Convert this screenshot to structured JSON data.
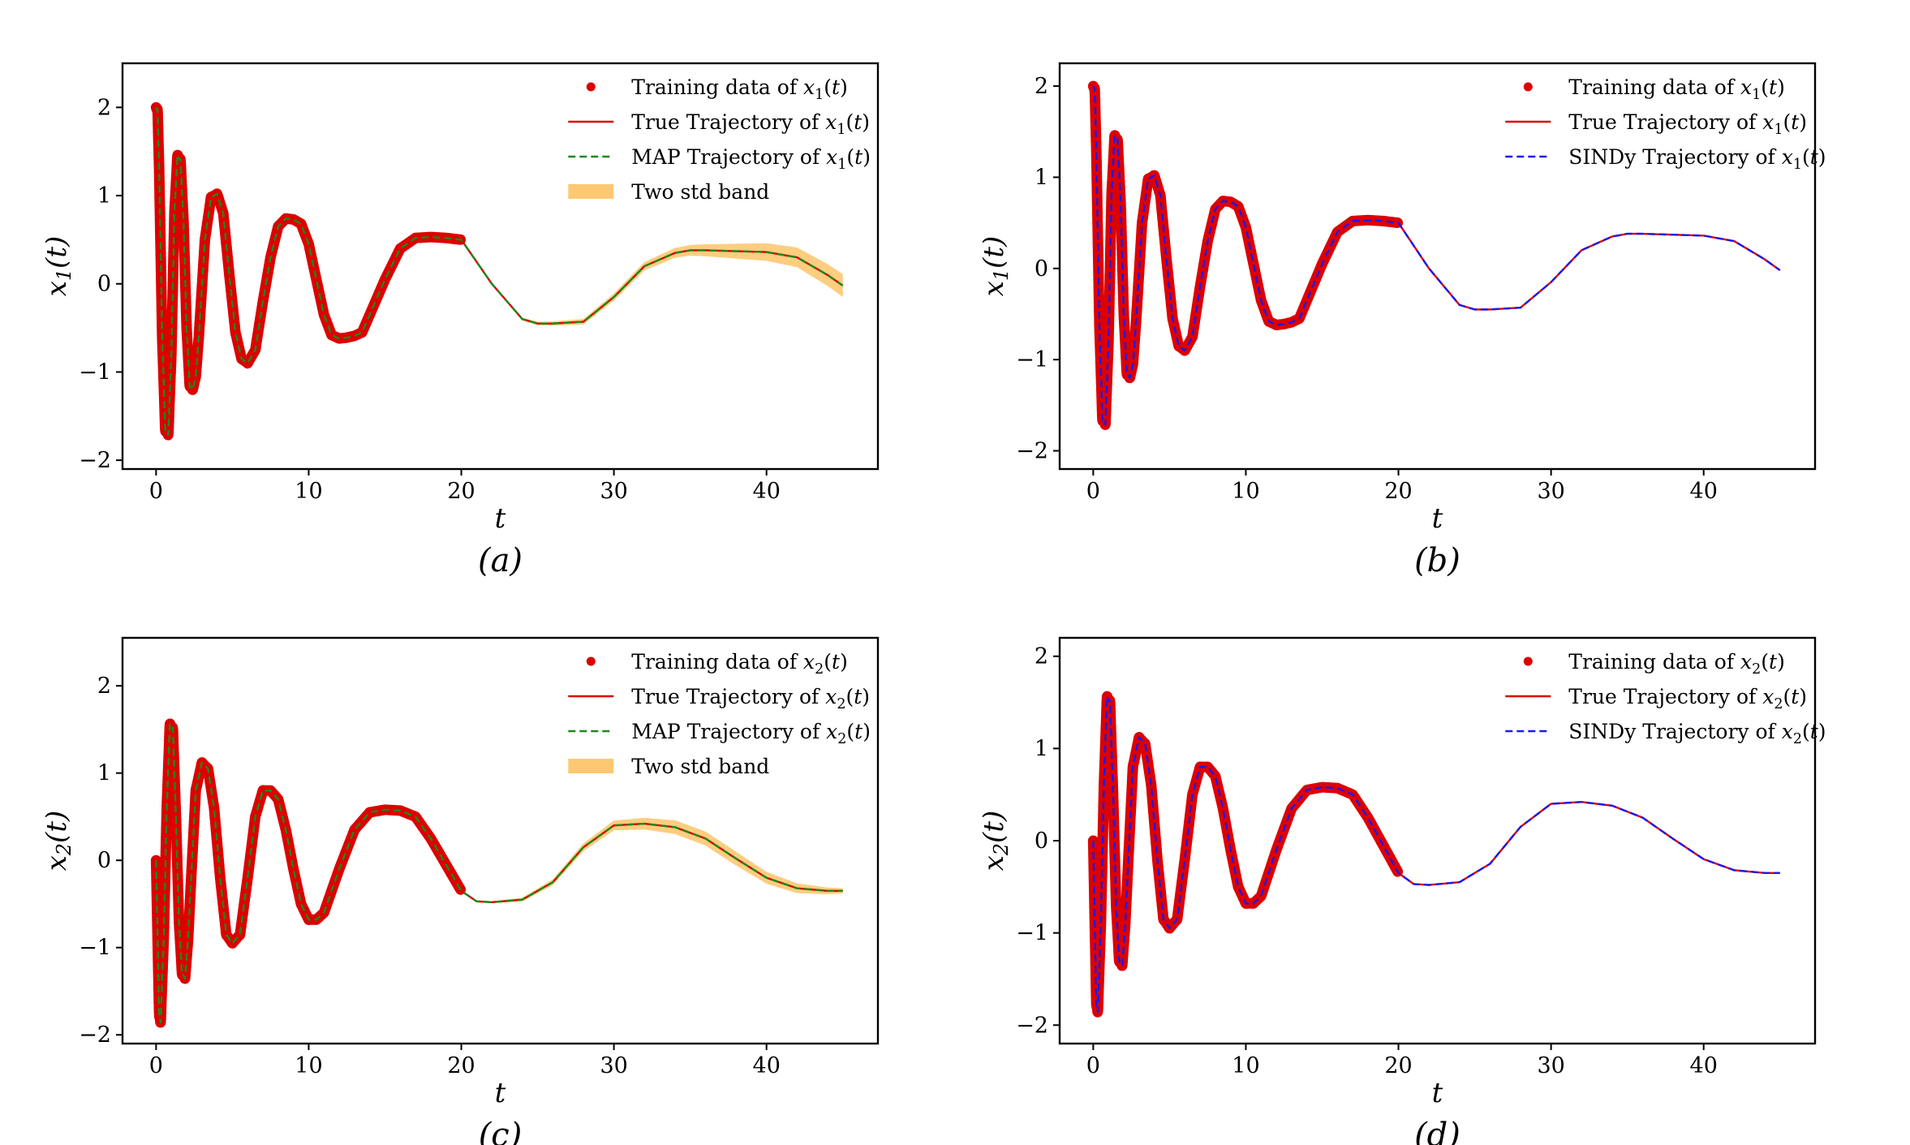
{
  "chart_data": [
    {
      "type": "line",
      "panel": "(a)",
      "xlabel": "t",
      "ylabel": "x₁(t)",
      "xlim": [
        -2.2,
        47.3
      ],
      "ylim": [
        -2.1,
        2.5
      ],
      "xticks": [
        0,
        10,
        20,
        30,
        40
      ],
      "yticks": [
        -2,
        -1,
        0,
        1,
        2
      ],
      "legend_position": "top-right",
      "legend": [
        {
          "label": "Training data of x₁(t)",
          "kind": "dot",
          "color": "#dd0000"
        },
        {
          "label": "True Trajectory of x₁(t)",
          "kind": "line",
          "color": "#dd0000"
        },
        {
          "label": "MAP Trajectory of x₁(t)",
          "kind": "dash",
          "color": "#1a8a1a"
        },
        {
          "label": "Two std band",
          "kind": "band",
          "color": "#fdc872"
        }
      ],
      "model_color": "#1a8a1a",
      "has_band": true,
      "training_range": [
        0,
        20
      ],
      "x": [
        0,
        0.1,
        0.2,
        0.4,
        0.6,
        0.8,
        1.0,
        1.2,
        1.4,
        1.6,
        1.8,
        2.0,
        2.2,
        2.4,
        2.6,
        2.8,
        3.2,
        3.6,
        4.0,
        4.4,
        4.8,
        5.2,
        5.6,
        6.0,
        6.5,
        7.0,
        7.5,
        8.0,
        8.5,
        9.0,
        9.5,
        10.0,
        10.5,
        11.0,
        11.5,
        12.0,
        12.5,
        13.0,
        13.5,
        14.0,
        15.0,
        16.0,
        17.0,
        18.0,
        19.0,
        20.0,
        22.0,
        24.0,
        25.0,
        26.0,
        28.0,
        30.0,
        32.0,
        34.0,
        35.0,
        36.0,
        38.0,
        40.0,
        42.0,
        44.0,
        45.0
      ],
      "series": [
        {
          "values": [
            2.0,
            1.95,
            1.3,
            -0.6,
            -1.65,
            -1.7,
            -0.8,
            0.8,
            1.45,
            1.4,
            0.7,
            -0.5,
            -1.15,
            -1.2,
            -1.05,
            -0.6,
            0.5,
            0.98,
            1.02,
            0.8,
            0.1,
            -0.55,
            -0.85,
            -0.9,
            -0.75,
            -0.2,
            0.3,
            0.65,
            0.74,
            0.73,
            0.68,
            0.45,
            0.05,
            -0.35,
            -0.58,
            -0.62,
            -0.61,
            -0.59,
            -0.55,
            -0.35,
            0.05,
            0.4,
            0.52,
            0.53,
            0.52,
            0.5,
            0.0,
            -0.4,
            -0.45,
            -0.45,
            -0.43,
            -0.15,
            0.2,
            0.35,
            0.38,
            0.38,
            0.37,
            0.36,
            0.3,
            0.1,
            -0.02
          ]
        }
      ],
      "band_halfwidth": [
        0,
        0.02,
        0.04,
        0.06,
        0.1,
        0.13
      ]
    },
    {
      "type": "line",
      "panel": "(b)",
      "xlabel": "t",
      "ylabel": "x₁(t)",
      "xlim": [
        -2.2,
        47.3
      ],
      "ylim": [
        -2.2,
        2.25
      ],
      "xticks": [
        0,
        10,
        20,
        30,
        40
      ],
      "yticks": [
        -2,
        -1,
        0,
        1,
        2
      ],
      "legend_position": "top-right",
      "legend": [
        {
          "label": "Training data of x₁(t)",
          "kind": "dot",
          "color": "#dd0000"
        },
        {
          "label": "True Trajectory of x₁(t)",
          "kind": "line",
          "color": "#dd0000"
        },
        {
          "label": "SINDy Trajectory of x₁(t)",
          "kind": "dash",
          "color": "#1a1aee"
        }
      ],
      "model_color": "#1a1aee",
      "has_band": false,
      "training_range": [
        0,
        20
      ],
      "x": [
        0,
        0.1,
        0.2,
        0.4,
        0.6,
        0.8,
        1.0,
        1.2,
        1.4,
        1.6,
        1.8,
        2.0,
        2.2,
        2.4,
        2.6,
        2.8,
        3.2,
        3.6,
        4.0,
        4.4,
        4.8,
        5.2,
        5.6,
        6.0,
        6.5,
        7.0,
        7.5,
        8.0,
        8.5,
        9.0,
        9.5,
        10.0,
        10.5,
        11.0,
        11.5,
        12.0,
        12.5,
        13.0,
        13.5,
        14.0,
        15.0,
        16.0,
        17.0,
        18.0,
        19.0,
        20.0,
        22.0,
        24.0,
        25.0,
        26.0,
        28.0,
        30.0,
        32.0,
        34.0,
        35.0,
        36.0,
        38.0,
        40.0,
        42.0,
        44.0,
        45.0
      ],
      "series": [
        {
          "values": [
            2.0,
            1.95,
            1.3,
            -0.6,
            -1.65,
            -1.7,
            -0.8,
            0.8,
            1.45,
            1.4,
            0.7,
            -0.5,
            -1.15,
            -1.2,
            -1.05,
            -0.6,
            0.5,
            0.98,
            1.02,
            0.8,
            0.1,
            -0.55,
            -0.85,
            -0.9,
            -0.75,
            -0.2,
            0.3,
            0.65,
            0.74,
            0.73,
            0.68,
            0.45,
            0.05,
            -0.35,
            -0.58,
            -0.62,
            -0.61,
            -0.59,
            -0.55,
            -0.35,
            0.05,
            0.4,
            0.52,
            0.53,
            0.52,
            0.5,
            0.0,
            -0.4,
            -0.45,
            -0.45,
            -0.43,
            -0.15,
            0.2,
            0.35,
            0.38,
            0.38,
            0.37,
            0.36,
            0.3,
            0.1,
            -0.02
          ]
        }
      ]
    },
    {
      "type": "line",
      "panel": "(c)",
      "xlabel": "t",
      "ylabel": "x₂(t)",
      "xlim": [
        -2.2,
        47.3
      ],
      "ylim": [
        -2.1,
        2.55
      ],
      "xticks": [
        0,
        10,
        20,
        30,
        40
      ],
      "yticks": [
        -2,
        -1,
        0,
        1,
        2
      ],
      "legend_position": "top-right",
      "legend": [
        {
          "label": "Training data of x₂(t)",
          "kind": "dot",
          "color": "#dd0000"
        },
        {
          "label": "True Trajectory of x₂(t)",
          "kind": "line",
          "color": "#dd0000"
        },
        {
          "label": "MAP Trajectory of x₂(t)",
          "kind": "dash",
          "color": "#1a8a1a"
        },
        {
          "label": "Two std band",
          "kind": "band",
          "color": "#fdc872"
        }
      ],
      "model_color": "#1a8a1a",
      "has_band": true,
      "training_range": [
        0,
        20
      ],
      "x": [
        0,
        0.1,
        0.2,
        0.3,
        0.5,
        0.7,
        0.9,
        1.1,
        1.3,
        1.5,
        1.7,
        1.9,
        2.1,
        2.3,
        2.6,
        3.0,
        3.4,
        3.8,
        4.2,
        4.6,
        5.0,
        5.5,
        6.0,
        6.5,
        7.0,
        7.5,
        8.0,
        8.5,
        9.0,
        9.5,
        10.0,
        10.5,
        11.0,
        12.0,
        13.0,
        14.0,
        15.0,
        16.0,
        17.0,
        18.0,
        19.0,
        20.0,
        21.0,
        22.0,
        24.0,
        26.0,
        28.0,
        30.0,
        32.0,
        34.0,
        36.0,
        38.0,
        40.0,
        42.0,
        44.0,
        45.0
      ],
      "series": [
        {
          "values": [
            0.0,
            -0.9,
            -1.75,
            -1.85,
            -0.9,
            0.6,
            1.55,
            1.5,
            0.5,
            -0.7,
            -1.3,
            -1.35,
            -0.9,
            -0.2,
            0.8,
            1.12,
            1.05,
            0.6,
            -0.2,
            -0.85,
            -0.95,
            -0.85,
            -0.2,
            0.5,
            0.8,
            0.8,
            0.7,
            0.35,
            -0.1,
            -0.5,
            -0.68,
            -0.68,
            -0.6,
            -0.1,
            0.35,
            0.55,
            0.58,
            0.57,
            0.5,
            0.25,
            -0.05,
            -0.35,
            -0.47,
            -0.48,
            -0.45,
            -0.25,
            0.15,
            0.4,
            0.42,
            0.38,
            0.25,
            0.02,
            -0.2,
            -0.32,
            -0.35,
            -0.35
          ]
        }
      ],
      "band_halfwidth": [
        0,
        0.02,
        0.04,
        0.06,
        0.08,
        0.08,
        0.06,
        0.03
      ]
    },
    {
      "type": "line",
      "panel": "(d)",
      "xlabel": "t",
      "ylabel": "x₂(t)",
      "xlim": [
        -2.2,
        47.3
      ],
      "ylim": [
        -2.2,
        2.2
      ],
      "xticks": [
        0,
        10,
        20,
        30,
        40
      ],
      "yticks": [
        -2,
        -1,
        0,
        1,
        2
      ],
      "legend_position": "top-right",
      "legend": [
        {
          "label": "Training data of x₂(t)",
          "kind": "dot",
          "color": "#dd0000"
        },
        {
          "label": "True Trajectory of x₂(t)",
          "kind": "line",
          "color": "#dd0000"
        },
        {
          "label": "SINDy Trajectory of x₂(t)",
          "kind": "dash",
          "color": "#1a1aee"
        }
      ],
      "model_color": "#1a1aee",
      "has_band": false,
      "training_range": [
        0,
        20
      ],
      "x": [
        0,
        0.1,
        0.2,
        0.3,
        0.5,
        0.7,
        0.9,
        1.1,
        1.3,
        1.5,
        1.7,
        1.9,
        2.1,
        2.3,
        2.6,
        3.0,
        3.4,
        3.8,
        4.2,
        4.6,
        5.0,
        5.5,
        6.0,
        6.5,
        7.0,
        7.5,
        8.0,
        8.5,
        9.0,
        9.5,
        10.0,
        10.5,
        11.0,
        12.0,
        13.0,
        14.0,
        15.0,
        16.0,
        17.0,
        18.0,
        19.0,
        20.0,
        21.0,
        22.0,
        24.0,
        26.0,
        28.0,
        30.0,
        32.0,
        34.0,
        36.0,
        38.0,
        40.0,
        42.0,
        44.0,
        45.0
      ],
      "series": [
        {
          "values": [
            0.0,
            -0.9,
            -1.75,
            -1.85,
            -0.9,
            0.6,
            1.55,
            1.5,
            0.5,
            -0.7,
            -1.3,
            -1.35,
            -0.9,
            -0.2,
            0.8,
            1.12,
            1.05,
            0.6,
            -0.2,
            -0.85,
            -0.95,
            -0.85,
            -0.2,
            0.5,
            0.8,
            0.8,
            0.7,
            0.35,
            -0.1,
            -0.5,
            -0.68,
            -0.68,
            -0.6,
            -0.1,
            0.35,
            0.55,
            0.58,
            0.57,
            0.5,
            0.25,
            -0.05,
            -0.35,
            -0.47,
            -0.48,
            -0.45,
            -0.25,
            0.15,
            0.4,
            0.42,
            0.38,
            0.25,
            0.02,
            -0.2,
            -0.32,
            -0.35,
            -0.35
          ]
        }
      ]
    }
  ]
}
